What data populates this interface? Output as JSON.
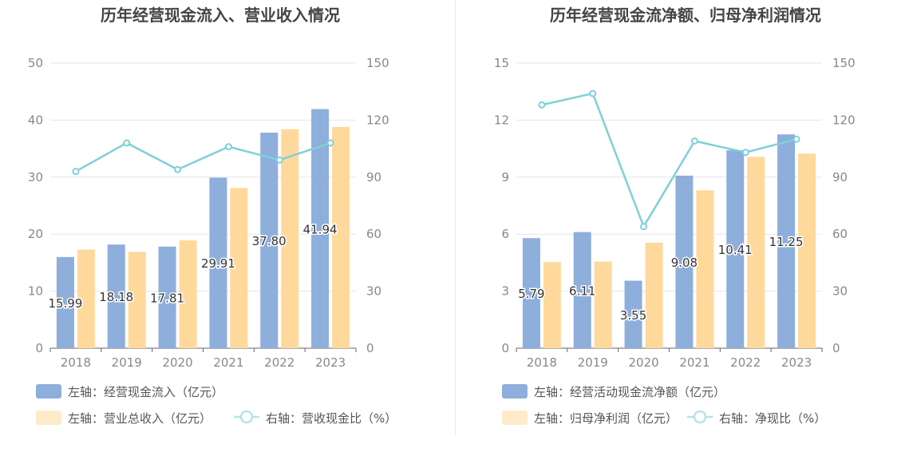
{
  "colors": {
    "bar1": "#8eaedb",
    "bar2": "#ffd99b",
    "line": "#7fd0d8",
    "grid": "#e3e6ee",
    "title": "#444444",
    "axis_text": "#888888",
    "legend_text": "#555555",
    "label_text": "#333333"
  },
  "chart_data": [
    {
      "type": "bar",
      "title": "历年经营现金流入、营业收入情况",
      "categories": [
        "2018",
        "2019",
        "2020",
        "2021",
        "2022",
        "2023"
      ],
      "ylim_left": [
        0,
        50
      ],
      "yticks_left": [
        "0",
        "10",
        "20",
        "30",
        "40",
        "50"
      ],
      "ylim_right": [
        0,
        150
      ],
      "yticks_right": [
        "0",
        "30",
        "60",
        "90",
        "120",
        "150"
      ],
      "series": [
        {
          "name": "左轴：经营现金流入（亿元）",
          "axis": "left",
          "type": "bar",
          "values": [
            15.99,
            18.18,
            17.81,
            29.91,
            37.8,
            41.94
          ],
          "labels": [
            "15.99",
            "18.18",
            "17.81",
            "29.91",
            "37.80",
            "41.94"
          ]
        },
        {
          "name": "左轴：营业总收入（亿元）",
          "axis": "left",
          "type": "bar",
          "values": [
            17.3,
            16.9,
            18.9,
            28.1,
            38.4,
            38.8
          ]
        },
        {
          "name": "右轴：营收现金比（%）",
          "axis": "right",
          "type": "line",
          "values": [
            93,
            108,
            94,
            106,
            99,
            108
          ]
        }
      ],
      "grid": true,
      "legend_position": "bottom-left"
    },
    {
      "type": "bar",
      "title": "历年经营现金流净额、归母净利润情况",
      "categories": [
        "2018",
        "2019",
        "2020",
        "2021",
        "2022",
        "2023"
      ],
      "ylim_left": [
        0,
        15
      ],
      "yticks_left": [
        "0",
        "3",
        "6",
        "9",
        "12",
        "15"
      ],
      "ylim_right": [
        0,
        150
      ],
      "yticks_right": [
        "0",
        "30",
        "60",
        "90",
        "120",
        "150"
      ],
      "series": [
        {
          "name": "左轴：经营活动现金流净额（亿元）",
          "axis": "left",
          "type": "bar",
          "values": [
            5.79,
            6.11,
            3.55,
            9.08,
            10.41,
            11.25
          ],
          "labels": [
            "5.79",
            "6.11",
            "3.55",
            "9.08",
            "10.41",
            "11.25"
          ]
        },
        {
          "name": "左轴：归母净利润（亿元）",
          "axis": "left",
          "type": "bar",
          "values": [
            4.53,
            4.56,
            5.55,
            8.31,
            10.07,
            10.24
          ]
        },
        {
          "name": "右轴：净现比（%）",
          "axis": "right",
          "type": "line",
          "values": [
            128,
            134,
            64,
            109,
            103,
            110
          ]
        }
      ],
      "grid": true,
      "legend_position": "bottom-left"
    }
  ]
}
